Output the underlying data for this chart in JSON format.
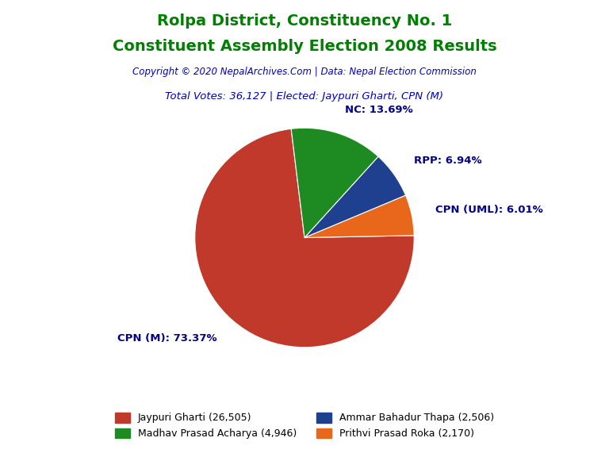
{
  "title_line1": "Rolpa District, Constituency No. 1",
  "title_line2": "Constituent Assembly Election 2008 Results",
  "title_color": "#008000",
  "copyright_text": "Copyright © 2020 NepalArchives.Com | Data: Nepal Election Commission",
  "copyright_color": "#0000CD",
  "subtitle_text": "Total Votes: 36,127 | Elected: Jaypuri Gharti, CPN (M)",
  "subtitle_color": "#0000CD",
  "slices": [
    {
      "label": "CPN (M): 73.37%",
      "value": 26505,
      "color": "#C0392B",
      "legend": "Jaypuri Gharti (26,505)"
    },
    {
      "label": "CPN (UML): 6.01%",
      "value": 2170,
      "color": "#E8671A",
      "legend": "Prithvi Prasad Roka (2,170)"
    },
    {
      "label": "RPP: 6.94%",
      "value": 2506,
      "color": "#1F3F8F",
      "legend": "Ammar Bahadur Thapa (2,506)"
    },
    {
      "label": "NC: 13.69%",
      "value": 4946,
      "color": "#1E8B22",
      "legend": "Madhav Prasad Acharya (4,946)"
    }
  ],
  "legend_order": [
    {
      "legend": "Jaypuri Gharti (26,505)",
      "color": "#C0392B"
    },
    {
      "legend": "Madhav Prasad Acharya (4,946)",
      "color": "#1E8B22"
    },
    {
      "legend": "Ammar Bahadur Thapa (2,506)",
      "color": "#1F3F8F"
    },
    {
      "legend": "Prithvi Prasad Roka (2,170)",
      "color": "#E8671A"
    }
  ],
  "shadow_color": "#7B0000",
  "background_color": "#FFFFFF",
  "label_color": "#00008B",
  "legend_color": "#000000",
  "startangle": 97
}
